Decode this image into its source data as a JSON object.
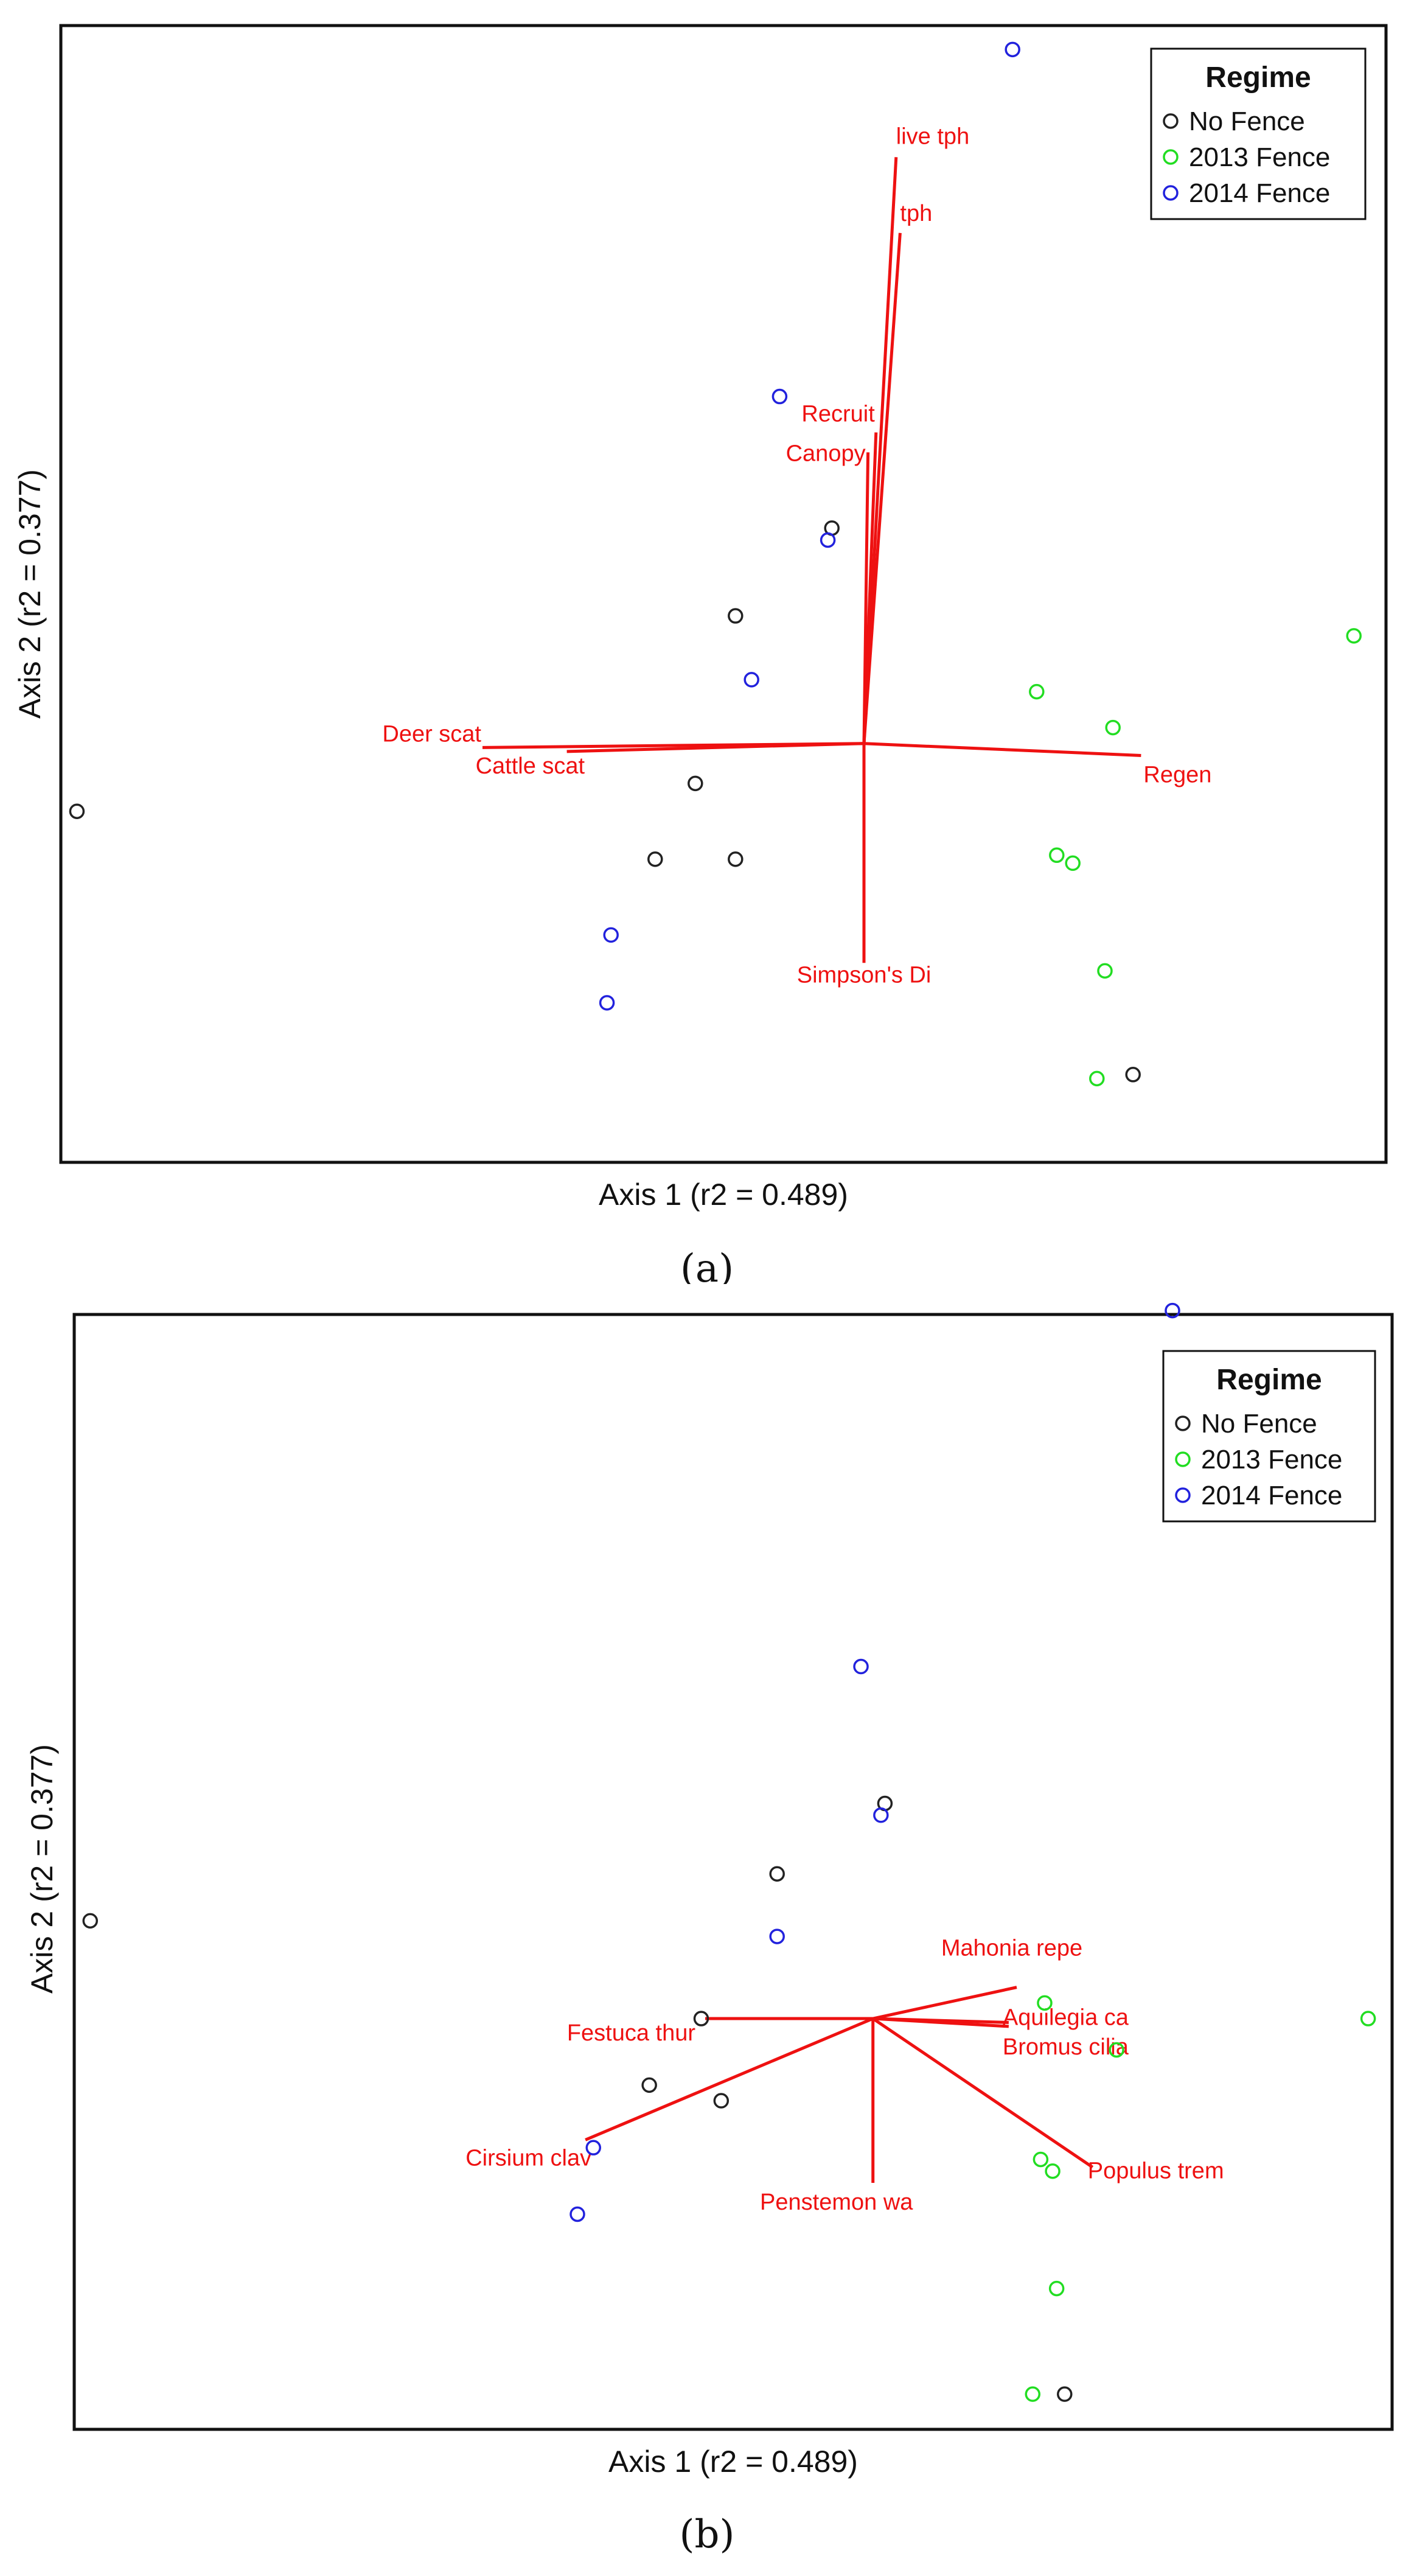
{
  "chart_data": [
    {
      "type": "scatter",
      "panel_label": "(a)",
      "xlabel": "Axis 1 (r2 = 0.489)",
      "ylabel": "Axis 2 (r2 = 0.377)",
      "xlim": [
        -2.0,
        1.3
      ],
      "ylim": [
        -1.05,
        1.8
      ],
      "legend": {
        "title": "Regime",
        "position": "top-right",
        "entries": [
          {
            "name": "No Fence",
            "color": "#222222"
          },
          {
            "name": "2013 Fence",
            "color": "#22dd22"
          },
          {
            "name": "2014 Fence",
            "color": "#2222dd"
          }
        ]
      },
      "series": [
        {
          "name": "No Fence",
          "color": "#222222",
          "points": [
            [
              -1.96,
              -0.17
            ],
            [
              -0.08,
              0.54
            ],
            [
              -0.32,
              0.32
            ],
            [
              -0.42,
              -0.1
            ],
            [
              -0.52,
              -0.29
            ],
            [
              -0.32,
              -0.29
            ],
            [
              0.67,
              -0.83
            ]
          ]
        },
        {
          "name": "2013 Fence",
          "color": "#22dd22",
          "points": [
            [
              1.22,
              0.27
            ],
            [
              0.43,
              0.13
            ],
            [
              0.62,
              0.04
            ],
            [
              0.48,
              -0.28
            ],
            [
              0.52,
              -0.3
            ],
            [
              0.6,
              -0.57
            ],
            [
              0.58,
              -0.84
            ]
          ]
        },
        {
          "name": "2014 Fence",
          "color": "#2222dd",
          "points": [
            [
              0.37,
              1.74
            ],
            [
              -0.21,
              0.87
            ],
            [
              -0.09,
              0.51
            ],
            [
              -0.28,
              0.16
            ],
            [
              -0.63,
              -0.48
            ],
            [
              -0.64,
              -0.65
            ]
          ]
        }
      ],
      "vectors": [
        {
          "label": "live tph",
          "end": [
            0.08,
            1.47
          ]
        },
        {
          "label": "tph",
          "end": [
            0.09,
            1.28
          ]
        },
        {
          "label": "Recruit",
          "end": [
            0.03,
            0.78
          ]
        },
        {
          "label": "Canopy",
          "end": [
            0.01,
            0.73
          ]
        },
        {
          "label": "Deer scat",
          "end": [
            -0.95,
            -0.01
          ]
        },
        {
          "label": "Cattle scat",
          "end": [
            -0.74,
            -0.02
          ]
        },
        {
          "label": "Regen",
          "end": [
            0.69,
            -0.03
          ]
        },
        {
          "label": "Simpson's Di",
          "end": [
            0.0,
            -0.55
          ]
        }
      ],
      "vector_color": "#ee1111"
    },
    {
      "type": "scatter",
      "panel_label": "(b)",
      "xlabel": "Axis 1 (r2 = 0.489)",
      "ylabel": "Axis 2 (r2 = 0.377)",
      "xlim": [
        -2.0,
        1.3
      ],
      "ylim": [
        -1.05,
        1.8
      ],
      "legend": {
        "title": "Regime",
        "position": "top-right",
        "entries": [
          {
            "name": "No Fence",
            "color": "#222222"
          },
          {
            "name": "2013 Fence",
            "color": "#22dd22"
          },
          {
            "name": "2014 Fence",
            "color": "#2222dd"
          }
        ]
      },
      "series": [
        {
          "name": "No Fence",
          "color": "#222222",
          "points": [
            [
              -1.96,
              0.25
            ],
            [
              0.03,
              0.55
            ],
            [
              -0.24,
              0.37
            ],
            [
              -0.43,
              0.0
            ],
            [
              -0.56,
              -0.17
            ],
            [
              -0.38,
              -0.21
            ],
            [
              0.48,
              -0.96
            ]
          ]
        },
        {
          "name": "2013 Fence",
          "color": "#22dd22",
          "points": [
            [
              1.24,
              0.0
            ],
            [
              0.43,
              0.04
            ],
            [
              0.61,
              -0.08
            ],
            [
              0.42,
              -0.36
            ],
            [
              0.45,
              -0.39
            ],
            [
              0.46,
              -0.69
            ],
            [
              0.4,
              -0.96
            ]
          ]
        },
        {
          "name": "2014 Fence",
          "color": "#2222dd",
          "points": [
            [
              0.75,
              1.81
            ],
            [
              -0.03,
              0.9
            ],
            [
              0.02,
              0.52
            ],
            [
              -0.24,
              0.21
            ],
            [
              -0.7,
              -0.33
            ],
            [
              -0.74,
              -0.5
            ]
          ]
        }
      ],
      "vectors": [
        {
          "label": "Mahonia repe",
          "end": [
            0.36,
            0.08
          ]
        },
        {
          "label": "Aquilegia ca",
          "end": [
            0.34,
            -0.01
          ]
        },
        {
          "label": "Bromus cilia",
          "end": [
            0.34,
            -0.02
          ]
        },
        {
          "label": "Festuca thur",
          "end": [
            -0.42,
            0.0
          ]
        },
        {
          "label": "Cirsium clav",
          "end": [
            -0.72,
            -0.31
          ]
        },
        {
          "label": "Penstemon wa",
          "end": [
            0.0,
            -0.42
          ]
        },
        {
          "label": "Populus trem",
          "end": [
            0.55,
            -0.38
          ]
        }
      ],
      "vector_color": "#ee1111"
    }
  ]
}
